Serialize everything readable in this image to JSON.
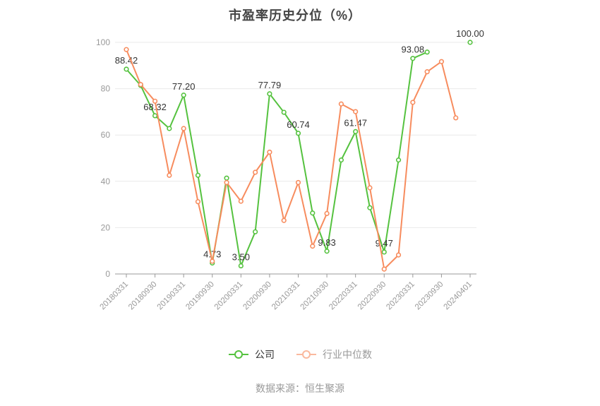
{
  "chart_data": {
    "type": "line",
    "title": "市盈率历史分位（%）",
    "source_note": "数据来源：恒生聚源",
    "ylim": [
      0,
      100
    ],
    "y_ticks": [
      0,
      20,
      40,
      60,
      80,
      100
    ],
    "grid": true,
    "legend_position": "bottom",
    "x": [
      "2018-03-31",
      "2018-06-30",
      "2018-09-30",
      "2018-12-31",
      "2019-03-31",
      "2019-06-30",
      "2019-09-30",
      "2019-12-31",
      "2020-03-31",
      "2020-06-30",
      "2020-09-30",
      "2020-12-31",
      "2021-03-31",
      "2021-06-30",
      "2021-09-30",
      "2021-12-31",
      "2022-03-31",
      "2022-06-30",
      "2022-09-30",
      "2022-12-31",
      "2023-03-31",
      "2023-06-30",
      "2023-09-30",
      "2023-12-31",
      "2024-04-01"
    ],
    "x_tick_labels": [
      "20180331",
      "20180930",
      "20190331",
      "20190930",
      "20200331",
      "20200930",
      "20210331",
      "20210930",
      "20220331",
      "20220930",
      "20230331",
      "20230930",
      "20240401"
    ],
    "series": [
      {
        "name": "公司",
        "color": "#55c23f",
        "values": [
          88.42,
          81.4,
          68.32,
          62.8,
          77.2,
          42.6,
          4.73,
          41.4,
          3.5,
          18.2,
          77.79,
          69.8,
          60.74,
          26.3,
          9.83,
          49.2,
          61.47,
          28.6,
          9.47,
          49.2,
          93.08,
          95.8,
          null,
          null,
          100.0
        ],
        "point_labels": [
          "88.42",
          null,
          "68.32",
          null,
          "77.20",
          null,
          "4.73",
          null,
          "3.50",
          null,
          "77.79",
          null,
          "60.74",
          null,
          "9.83",
          null,
          "61.47",
          null,
          "9.47",
          null,
          "93.08",
          null,
          null,
          null,
          "100.00"
        ]
      },
      {
        "name": "行业中位数",
        "color": "#f78c5e",
        "values": [
          96.9,
          81.8,
          74.6,
          42.6,
          62.8,
          31.2,
          5.5,
          39.5,
          31.4,
          43.9,
          52.6,
          23.1,
          39.5,
          12.0,
          26.1,
          73.4,
          70.1,
          37.2,
          2.1,
          8.2,
          74.1,
          87.3,
          91.7,
          67.4,
          null
        ],
        "point_labels": null
      }
    ]
  }
}
